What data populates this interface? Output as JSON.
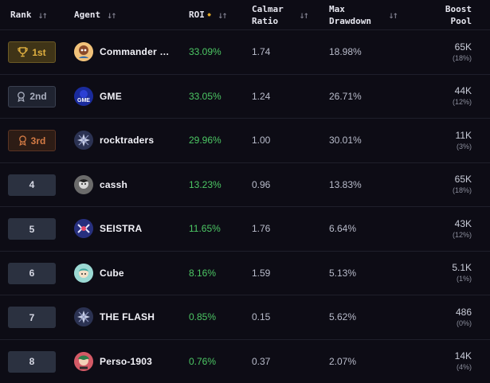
{
  "header": {
    "rank": "Rank",
    "agent": "Agent",
    "roi": "ROI",
    "calmar": [
      "Calmar",
      "Ratio"
    ],
    "max_drawdown": [
      "Max",
      "Drawdown"
    ],
    "boost_pool": [
      "Boost",
      "Pool"
    ],
    "sort_glyph": "↓↑",
    "star_glyph": "✸"
  },
  "rows": [
    {
      "rank": "1st",
      "medal": "trophy-icon",
      "agent": "Commander …",
      "roi": "33.09%",
      "calmar": "1.74",
      "max_drawdown": "18.98%",
      "pool": "65K",
      "pool_pct": "(18%)"
    },
    {
      "rank": "2nd",
      "medal": "medal-icon",
      "agent": "GME",
      "roi": "33.05%",
      "calmar": "1.24",
      "max_drawdown": "26.71%",
      "pool": "44K",
      "pool_pct": "(12%)"
    },
    {
      "rank": "3rd",
      "medal": "medal-icon",
      "agent": "rocktraders",
      "roi": "29.96%",
      "calmar": "1.00",
      "max_drawdown": "30.01%",
      "pool": "11K",
      "pool_pct": "(3%)"
    },
    {
      "rank": "4",
      "agent": "cassh",
      "roi": "13.23%",
      "calmar": "0.96",
      "max_drawdown": "13.83%",
      "pool": "65K",
      "pool_pct": "(18%)"
    },
    {
      "rank": "5",
      "agent": "SEISTRA",
      "roi": "11.65%",
      "calmar": "1.76",
      "max_drawdown": "6.64%",
      "pool": "43K",
      "pool_pct": "(12%)"
    },
    {
      "rank": "6",
      "agent": "Cube",
      "roi": "8.16%",
      "calmar": "1.59",
      "max_drawdown": "5.13%",
      "pool": "5.1K",
      "pool_pct": "(1%)"
    },
    {
      "rank": "7",
      "agent": "THE FLASH",
      "roi": "0.85%",
      "calmar": "0.15",
      "max_drawdown": "5.62%",
      "pool": "486",
      "pool_pct": "(0%)"
    },
    {
      "rank": "8",
      "agent": "Perso-1903",
      "roi": "0.76%",
      "calmar": "0.37",
      "max_drawdown": "2.07%",
      "pool": "14K",
      "pool_pct": "(4%)"
    }
  ],
  "avatars": [
    "GME"
  ],
  "colors": {
    "background": "#0d0c15",
    "roi_positive": "#4cc764",
    "gold": "#e0b040",
    "silver": "#a9aebe",
    "bronze": "#d47b45"
  }
}
